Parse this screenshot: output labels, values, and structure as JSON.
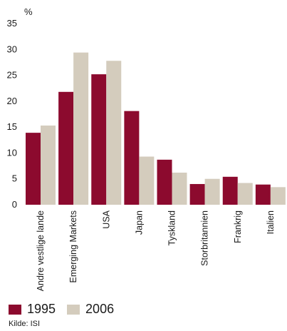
{
  "chart_data": {
    "type": "bar",
    "unit_label": "%",
    "categories": [
      "Andre vestlige lande",
      "Emerging Markets",
      "USA",
      "Japan",
      "Tyskland",
      "Storbritannien",
      "Frankrig",
      "Italien"
    ],
    "series": [
      {
        "name": "1995",
        "color": "#8c0a2e",
        "values": [
          13.9,
          21.8,
          25.2,
          18.1,
          8.7,
          4.0,
          5.4,
          3.9
        ]
      },
      {
        "name": "2006",
        "color": "#d4ccbd",
        "values": [
          15.3,
          29.4,
          27.8,
          9.3,
          6.2,
          5.0,
          4.2,
          3.4
        ]
      }
    ],
    "ylim": [
      0,
      35
    ],
    "yticks": [
      0,
      5,
      10,
      15,
      20,
      25,
      30,
      35
    ],
    "grid": false,
    "legend_position": "bottom-left"
  },
  "source": "Kilde: ISI"
}
